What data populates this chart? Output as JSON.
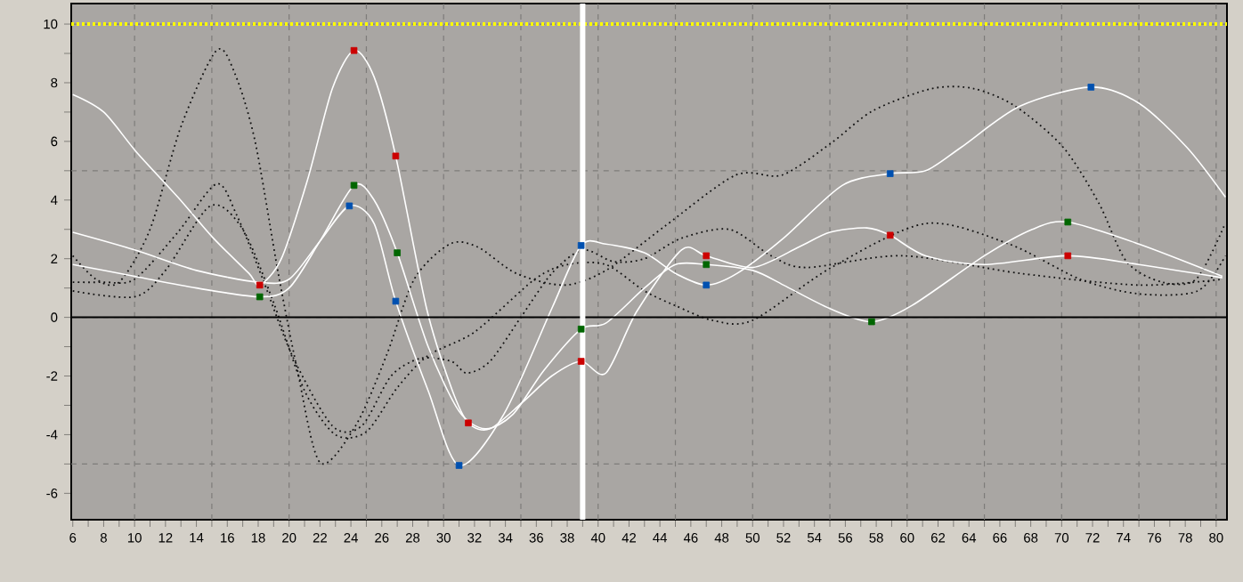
{
  "chart_data": {
    "type": "line",
    "xlim": [
      5.9,
      80.7
    ],
    "ylim": [
      -6.9,
      10.7
    ],
    "xticks": [
      6,
      {
        "value": 7,
        "label": null
      },
      8,
      {
        "value": 9,
        "label": null
      },
      10,
      {
        "value": 11,
        "label": null
      },
      12,
      {
        "value": 13,
        "label": null
      },
      14,
      {
        "value": 15,
        "label": null
      },
      16,
      {
        "value": 17,
        "label": null
      },
      18,
      {
        "value": 19,
        "label": null
      },
      20,
      {
        "value": 21,
        "label": null
      },
      22,
      {
        "value": 23,
        "label": null
      },
      24,
      {
        "value": 25,
        "label": null
      },
      26,
      {
        "value": 27,
        "label": null
      },
      28,
      {
        "value": 29,
        "label": null
      },
      30,
      {
        "value": 31,
        "label": null
      },
      32,
      {
        "value": 33,
        "label": null
      },
      34,
      {
        "value": 35,
        "label": null
      },
      36,
      {
        "value": 37,
        "label": null
      },
      38,
      {
        "value": 39,
        "label": null
      },
      40,
      {
        "value": 41,
        "label": null
      },
      42,
      {
        "value": 43,
        "label": null
      },
      44,
      {
        "value": 45,
        "label": null
      },
      46,
      {
        "value": 47,
        "label": null
      },
      48,
      {
        "value": 49,
        "label": null
      },
      50,
      {
        "value": 51,
        "label": null
      },
      52,
      {
        "value": 53,
        "label": null
      },
      54,
      {
        "value": 55,
        "label": null
      },
      56,
      {
        "value": 57,
        "label": null
      },
      58,
      {
        "value": 59,
        "label": null
      },
      60,
      {
        "value": 61,
        "label": null
      },
      62,
      {
        "value": 63,
        "label": null
      },
      64,
      {
        "value": 65,
        "label": null
      },
      66,
      {
        "value": 67,
        "label": null
      },
      68,
      {
        "value": 69,
        "label": null
      },
      70,
      {
        "value": 71,
        "label": null
      },
      72,
      {
        "value": 73,
        "label": null
      },
      74,
      {
        "value": 75,
        "label": null
      },
      76,
      {
        "value": 77,
        "label": null
      },
      78,
      {
        "value": 79,
        "label": null
      },
      80
    ],
    "yticks": [
      -6,
      {
        "value": -5,
        "label": null
      },
      -4,
      {
        "value": -3,
        "label": null
      },
      -2,
      {
        "value": -1,
        "label": null
      },
      0,
      {
        "value": 1,
        "label": null
      },
      2,
      {
        "value": 3,
        "label": null
      },
      4,
      {
        "value": 5,
        "label": null
      },
      6,
      {
        "value": 7,
        "label": null
      },
      8,
      {
        "value": 9,
        "label": null
      },
      10
    ],
    "grid": true,
    "series": [
      {
        "color": "#111111",
        "line_style": "dotted",
        "x": [
          6,
          7.5,
          9,
          11,
          13,
          15.3,
          16.5,
          17.8,
          19.3,
          20.5,
          22,
          24.3,
          26.3,
          28.1,
          30.4,
          32.2,
          34.7,
          37.8,
          40.5,
          44.3,
          48.9,
          51.9,
          55.1,
          57.8,
          61.6,
          64.3,
          67,
          70.1,
          72.4,
          74.2,
          76.5,
          78.7,
          80.5
        ],
        "values": [
          2.1,
          1.3,
          1.2,
          3.0,
          6.5,
          9.1,
          8.3,
          6.0,
          1.5,
          -1.7,
          -4.95,
          -3.7,
          -1.3,
          1.3,
          2.5,
          2.4,
          1.5,
          1.1,
          1.6,
          3.1,
          4.85,
          4.85,
          5.95,
          7.05,
          7.8,
          7.8,
          7.2,
          5.8,
          3.9,
          1.9,
          1.2,
          1.3,
          3.1
        ]
      },
      {
        "color": "#111111",
        "line_style": "dotted",
        "x": [
          6,
          8,
          10,
          12.8,
          15.3,
          16.6,
          18.3,
          20.2,
          22.8,
          24.7,
          26.6,
          28.5,
          30.5,
          31.5,
          33,
          35,
          37,
          39,
          41,
          43,
          45.4,
          48.5,
          51.2,
          53.5,
          59.7,
          67.3,
          75,
          80.4
        ],
        "values": [
          1.2,
          1.2,
          1.3,
          2.9,
          4.55,
          3.5,
          1.3,
          -1.3,
          -3.7,
          -3.7,
          -2.0,
          -1.4,
          -1.5,
          -1.9,
          -1.5,
          0.0,
          1.5,
          2.3,
          1.9,
          2.0,
          2.7,
          3.0,
          2.1,
          1.7,
          2.1,
          1.5,
          1.1,
          1.3
        ]
      },
      {
        "color": "#111111",
        "line_style": "dotted",
        "x": [
          6,
          10,
          12,
          14.9,
          17,
          19,
          21,
          23,
          25,
          27,
          29,
          32,
          35.9,
          38,
          40.5,
          43,
          45,
          47.4,
          50,
          55.1,
          61.2,
          66.6,
          71.2,
          75,
          78.8,
          80.6
        ],
        "values": [
          0.9,
          0.7,
          1.6,
          3.8,
          3.0,
          0.5,
          -2.5,
          -4.0,
          -3.9,
          -2.4,
          -1.3,
          -0.5,
          1.3,
          1.8,
          1.8,
          0.9,
          0.4,
          -0.1,
          -0.1,
          1.7,
          3.2,
          2.5,
          1.3,
          0.8,
          0.9,
          2.1
        ]
      },
      {
        "color": "#ffffff",
        "line_style": "solid",
        "x": [
          6,
          8,
          10.1,
          12.8,
          15.1,
          17.4,
          18.1,
          19.5,
          21.2,
          22.8,
          24.2,
          25.5,
          26.9,
          28.9,
          30.5,
          31.6,
          33,
          35.1,
          37,
          38.9,
          40.5,
          42.5,
          45.4,
          47,
          50,
          53,
          55,
          57.4,
          58.9,
          61.2,
          65,
          70.4,
          75,
          80.4
        ],
        "values": [
          7.6,
          7.0,
          5.65,
          4.1,
          2.7,
          1.5,
          1.1,
          2.0,
          4.7,
          7.8,
          9.1,
          8.2,
          5.5,
          0.3,
          -2.4,
          -3.6,
          -3.8,
          -2.9,
          -2.0,
          -1.5,
          -1.9,
          0.2,
          2.3,
          2.1,
          1.7,
          2.4,
          2.9,
          3.05,
          2.8,
          2.1,
          1.8,
          2.1,
          1.8,
          1.35
        ]
      },
      {
        "color": "#ffffff",
        "line_style": "solid",
        "x": [
          6,
          10,
          14,
          18.1,
          20,
          22,
          24.2,
          25.5,
          27,
          29,
          31,
          32.7,
          34.5,
          36.5,
          38.9,
          40.5,
          43,
          45,
          47,
          50,
          52,
          55,
          57.7,
          60.3,
          65,
          68.1,
          70.4,
          75,
          80.4
        ],
        "values": [
          1.8,
          1.4,
          1.0,
          0.7,
          1.0,
          2.6,
          4.5,
          4.0,
          2.2,
          -1.0,
          -3.2,
          -3.8,
          -3.3,
          -1.8,
          -0.4,
          -0.2,
          1.0,
          1.8,
          1.8,
          1.6,
          1.1,
          0.3,
          -0.15,
          0.4,
          2.1,
          3.0,
          3.25,
          2.5,
          1.4
        ]
      },
      {
        "color": "#ffffff",
        "line_style": "solid",
        "x": [
          6,
          10,
          14,
          18,
          20,
          22,
          23.9,
          25.5,
          26.9,
          29,
          31,
          33.9,
          37,
          38.9,
          40.5,
          43,
          45,
          47,
          49,
          52,
          55.8,
          58.9,
          61.2,
          63.5,
          67.3,
          71.9,
          75,
          78.1,
          80.6
        ],
        "values": [
          2.9,
          2.3,
          1.6,
          1.2,
          1.3,
          2.6,
          3.8,
          3.2,
          0.55,
          -2.5,
          -5.05,
          -3.3,
          0.3,
          2.45,
          2.5,
          2.2,
          1.5,
          1.1,
          1.5,
          2.7,
          4.5,
          4.9,
          5.0,
          5.8,
          7.2,
          7.85,
          7.3,
          5.8,
          4.1
        ]
      },
      {
        "type": "scatter",
        "marker": "square",
        "color": "#cc0000",
        "x": [
          18.1,
          24.2,
          26.9,
          31.6,
          38.9,
          47,
          58.9,
          70.4
        ],
        "values": [
          1.1,
          9.1,
          5.5,
          -3.6,
          -1.5,
          2.1,
          2.8,
          2.1
        ]
      },
      {
        "type": "scatter",
        "marker": "square",
        "color": "#006600",
        "x": [
          18.1,
          24.2,
          27,
          38.9,
          47,
          57.7,
          70.4
        ],
        "values": [
          0.7,
          4.5,
          2.2,
          -0.4,
          1.8,
          -0.15,
          3.25
        ]
      },
      {
        "type": "scatter",
        "marker": "square",
        "color": "#0050b0",
        "x": [
          23.9,
          26.9,
          31,
          38.9,
          47,
          58.9,
          71.9
        ],
        "values": [
          3.8,
          0.55,
          -5.05,
          2.45,
          1.1,
          4.9,
          7.85
        ]
      }
    ],
    "ref_lines": [
      {
        "axis": "y",
        "value": 0,
        "color": "#000000",
        "line_style": "solid"
      },
      {
        "axis": "y",
        "value": 10,
        "color": "#ffff00",
        "line_style": "dotted"
      },
      {
        "axis": "x",
        "value": 39,
        "color": "#ffffff",
        "line_style": "solid"
      }
    ]
  }
}
